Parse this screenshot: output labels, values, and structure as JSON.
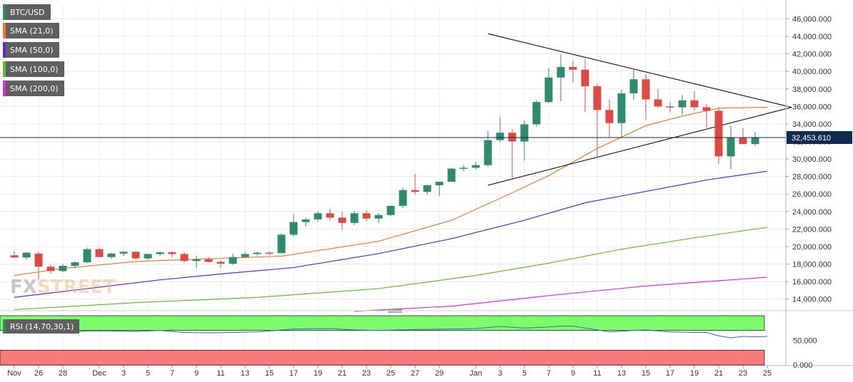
{
  "legend": {
    "symbol": "BTC/USD",
    "sma21": "SMA (21,0)",
    "sma50": "SMA (50,0)",
    "sma100": "SMA (100,0)",
    "sma200": "SMA (200,0)",
    "rsi": "RSI (14,70,30,1)"
  },
  "colors": {
    "up": "#2e8b6e",
    "down": "#dc4b43",
    "sma21": "#f07b2a",
    "sma50": "#5a2bd3",
    "sma100": "#5cc02a",
    "sma200": "#e32bd8",
    "rsi": "#3366cc",
    "overbought": "#7cfc6a",
    "oversold": "#f77b7b",
    "price_label": "#0f2a4d"
  },
  "watermark": {
    "part1": "FX",
    "part2": "STREET"
  },
  "price_label": "32,453.610",
  "chart_data": [
    {
      "type": "candlestick",
      "title": "BTC/USD",
      "ylim": [
        13000,
        47500
      ],
      "yticks": [
        "14,000.000",
        "16,000.000",
        "18,000.000",
        "20,000.000",
        "22,000.000",
        "24,000.000",
        "26,000.000",
        "28,000.000",
        "30,000.000",
        "32,000.000",
        "34,000.000",
        "36,000.000",
        "38,000.000",
        "40,000.000",
        "42,000.000",
        "44,000.000",
        "46,000.000"
      ],
      "ytick_values": [
        14000,
        16000,
        18000,
        20000,
        22000,
        24000,
        26000,
        28000,
        30000,
        32000,
        34000,
        36000,
        38000,
        40000,
        42000,
        44000,
        46000
      ],
      "xticks": [
        {
          "label": "Nov",
          "i": 0
        },
        {
          "label": "26",
          "i": 2
        },
        {
          "label": "28",
          "i": 4
        },
        {
          "label": "Dec",
          "i": 7
        },
        {
          "label": "3",
          "i": 9
        },
        {
          "label": "5",
          "i": 11
        },
        {
          "label": "7",
          "i": 13
        },
        {
          "label": "9",
          "i": 15
        },
        {
          "label": "11",
          "i": 17
        },
        {
          "label": "13",
          "i": 19
        },
        {
          "label": "15",
          "i": 21
        },
        {
          "label": "17",
          "i": 23
        },
        {
          "label": "19",
          "i": 25
        },
        {
          "label": "21",
          "i": 27
        },
        {
          "label": "23",
          "i": 29
        },
        {
          "label": "25",
          "i": 31
        },
        {
          "label": "27",
          "i": 33
        },
        {
          "label": "29",
          "i": 35
        },
        {
          "label": "Jan",
          "i": 38
        },
        {
          "label": "3",
          "i": 40
        },
        {
          "label": "5",
          "i": 42
        },
        {
          "label": "7",
          "i": 44
        },
        {
          "label": "9",
          "i": 46
        },
        {
          "label": "11",
          "i": 48
        },
        {
          "label": "13",
          "i": 50
        },
        {
          "label": "15",
          "i": 52
        },
        {
          "label": "17",
          "i": 54
        },
        {
          "label": "19",
          "i": 56
        },
        {
          "label": "21",
          "i": 58
        },
        {
          "label": "23",
          "i": 60
        },
        {
          "label": "25",
          "i": 62
        }
      ],
      "candles": [
        [
          19000,
          19450,
          18700,
          18750
        ],
        [
          18750,
          19400,
          18500,
          19300
        ],
        [
          19200,
          19450,
          16200,
          17700
        ],
        [
          17700,
          17900,
          16900,
          17200
        ],
        [
          17200,
          18000,
          17100,
          17800
        ],
        [
          17800,
          18350,
          17500,
          18200
        ],
        [
          18200,
          19900,
          18100,
          19700
        ],
        [
          19700,
          19900,
          18800,
          18800
        ],
        [
          18800,
          19300,
          18600,
          19200
        ],
        [
          19200,
          19500,
          18900,
          19400
        ],
        [
          19400,
          19450,
          18500,
          18650
        ],
        [
          18650,
          19200,
          18500,
          19150
        ],
        [
          19150,
          19400,
          18900,
          19350
        ],
        [
          19350,
          19450,
          18800,
          19150
        ],
        [
          19150,
          19350,
          18200,
          18350
        ],
        [
          18350,
          18950,
          17600,
          18550
        ],
        [
          18550,
          18800,
          18150,
          18250
        ],
        [
          18250,
          18450,
          17550,
          18050
        ],
        [
          18050,
          19200,
          17900,
          18800
        ],
        [
          18800,
          19400,
          18750,
          19150
        ],
        [
          19150,
          19400,
          18950,
          19300
        ],
        [
          19300,
          19450,
          19000,
          19250
        ],
        [
          19250,
          21500,
          19250,
          21350
        ],
        [
          21350,
          23700,
          21200,
          22800
        ],
        [
          22800,
          23300,
          22300,
          23100
        ],
        [
          23100,
          24000,
          22800,
          23800
        ],
        [
          23800,
          24300,
          23000,
          23300
        ],
        [
          23300,
          23950,
          21900,
          22700
        ],
        [
          22700,
          24100,
          22450,
          23800
        ],
        [
          23800,
          24100,
          22900,
          23200
        ],
        [
          23200,
          23800,
          22700,
          23600
        ],
        [
          23600,
          24650,
          23450,
          24650
        ],
        [
          24650,
          26700,
          24400,
          26450
        ],
        [
          26450,
          28300,
          25950,
          26250
        ],
        [
          26250,
          27100,
          25900,
          27000
        ],
        [
          27000,
          27400,
          25800,
          27400
        ],
        [
          27400,
          29000,
          27400,
          28900
        ],
        [
          28900,
          29300,
          28600,
          29000
        ],
        [
          29000,
          29650,
          28800,
          29300
        ],
        [
          29300,
          33200,
          29100,
          32150
        ],
        [
          32150,
          34800,
          31900,
          33000
        ],
        [
          33000,
          33450,
          27700,
          32000
        ],
        [
          32000,
          34400,
          29800,
          33950
        ],
        [
          33950,
          36700,
          33700,
          36500
        ],
        [
          36500,
          40400,
          36400,
          39300
        ],
        [
          39300,
          41950,
          36600,
          40500
        ],
        [
          40500,
          41200,
          38700,
          40200
        ],
        [
          40200,
          41400,
          35400,
          38300
        ],
        [
          38300,
          38600,
          30200,
          35600
        ],
        [
          35600,
          36800,
          32500,
          34100
        ],
        [
          34100,
          37900,
          32400,
          37500
        ],
        [
          37500,
          40200,
          36700,
          39100
        ],
        [
          39100,
          39700,
          34500,
          36800
        ],
        [
          36800,
          38000,
          35800,
          36000
        ],
        [
          36000,
          36500,
          35300,
          35900
        ],
        [
          35900,
          37300,
          35000,
          36700
        ],
        [
          36700,
          37800,
          35500,
          35900
        ],
        [
          35900,
          36300,
          33600,
          35500
        ],
        [
          35500,
          35900,
          29500,
          30300
        ],
        [
          30300,
          33800,
          28800,
          32400
        ],
        [
          32400,
          33500,
          31700,
          31700
        ],
        [
          31700,
          33100,
          31500,
          32450
        ]
      ],
      "series": [
        {
          "name": "SMA (21,0)",
          "values": [
            [
              0,
              16700
            ],
            [
              4,
              17500
            ],
            [
              10,
              18300
            ],
            [
              18,
              18700
            ],
            [
              22,
              18900
            ],
            [
              30,
              20600
            ],
            [
              36,
              23000
            ],
            [
              40,
              25500
            ],
            [
              44,
              28100
            ],
            [
              48,
              31200
            ],
            [
              52,
              33800
            ],
            [
              55,
              34900
            ],
            [
              58,
              35800
            ],
            [
              62,
              35900
            ]
          ]
        },
        {
          "name": "SMA (50,0)",
          "values": [
            [
              0,
              14200
            ],
            [
              6,
              15200
            ],
            [
              12,
              16200
            ],
            [
              18,
              17000
            ],
            [
              23,
              17600
            ],
            [
              30,
              19200
            ],
            [
              36,
              20900
            ],
            [
              42,
              23000
            ],
            [
              47,
              25000
            ],
            [
              52,
              26300
            ],
            [
              57,
              27600
            ],
            [
              62,
              28600
            ]
          ]
        },
        {
          "name": "SMA (100,0)",
          "values": [
            [
              0,
              12800
            ],
            [
              10,
              13600
            ],
            [
              20,
              14200
            ],
            [
              30,
              15200
            ],
            [
              38,
              16700
            ],
            [
              44,
              18100
            ],
            [
              50,
              19700
            ],
            [
              56,
              21000
            ],
            [
              62,
              22200
            ]
          ]
        },
        {
          "name": "SMA (200,0)",
          "values": [
            [
              28,
              12600
            ],
            [
              36,
              13200
            ],
            [
              44,
              14400
            ],
            [
              52,
              15500
            ],
            [
              62,
              16500
            ]
          ]
        }
      ],
      "trendlines": [
        {
          "from": [
            39,
            44300
          ],
          "to": [
            64,
            35900
          ]
        },
        {
          "from": [
            39,
            27000
          ],
          "to": [
            64,
            35900
          ]
        }
      ]
    },
    {
      "type": "line",
      "title": "RSI (14,70,30,1)",
      "ylim": [
        0,
        100
      ],
      "yticks": [
        "50.000",
        "0.000"
      ],
      "ytick_values": [
        50,
        0
      ],
      "overbought": 70,
      "oversold": 30,
      "values": [
        [
          0,
          75
        ],
        [
          2,
          66
        ],
        [
          4,
          65
        ],
        [
          6,
          69
        ],
        [
          8,
          69
        ],
        [
          10,
          68
        ],
        [
          12,
          70
        ],
        [
          14,
          66
        ],
        [
          16,
          65
        ],
        [
          18,
          66
        ],
        [
          20,
          67
        ],
        [
          23,
          73
        ],
        [
          26,
          74
        ],
        [
          28,
          71
        ],
        [
          30,
          70
        ],
        [
          33,
          72
        ],
        [
          36,
          73
        ],
        [
          38,
          74
        ],
        [
          40,
          78
        ],
        [
          42,
          75
        ],
        [
          44,
          77
        ],
        [
          45,
          79
        ],
        [
          46,
          79
        ],
        [
          48,
          71
        ],
        [
          49,
          67
        ],
        [
          51,
          70
        ],
        [
          52,
          71
        ],
        [
          54,
          67
        ],
        [
          56,
          66
        ],
        [
          57,
          66
        ],
        [
          58,
          59
        ],
        [
          59,
          55
        ],
        [
          60,
          58
        ],
        [
          61,
          57
        ],
        [
          62,
          58
        ]
      ]
    }
  ]
}
